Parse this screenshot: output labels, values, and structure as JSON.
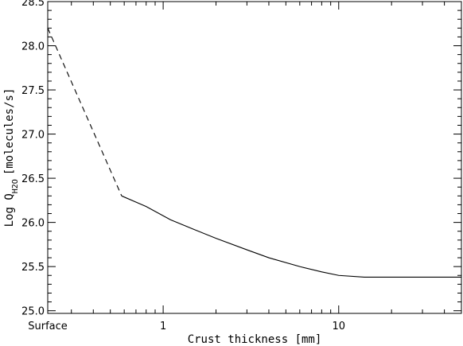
{
  "chart_data": {
    "type": "line",
    "xlabel": "Crust thickness [mm]",
    "ylabel_main": "Log Q",
    "ylabel_sub": "H2O",
    "ylabel_units": "[molecules/s]",
    "x_scale": "log",
    "xlim": [
      0.22,
      50
    ],
    "ylim": [
      24.97,
      28.5
    ],
    "x_ticks": [
      {
        "value": 1,
        "label": "1"
      },
      {
        "value": 10,
        "label": "10"
      }
    ],
    "x_surface_label": "Surface",
    "y_ticks": [
      {
        "value": 25.0,
        "label": "25.0"
      },
      {
        "value": 25.5,
        "label": "25.5"
      },
      {
        "value": 26.0,
        "label": "26.0"
      },
      {
        "value": 26.5,
        "label": "26.5"
      },
      {
        "value": 27.0,
        "label": "27.0"
      },
      {
        "value": 27.5,
        "label": "27.5"
      },
      {
        "value": 28.0,
        "label": "28.0"
      },
      {
        "value": 28.5,
        "label": "28.5"
      }
    ],
    "series": [
      {
        "style": "dashed",
        "points": [
          [
            0.22,
            28.2
          ],
          [
            0.58,
            26.3
          ]
        ]
      },
      {
        "style": "solid",
        "points": [
          [
            0.58,
            26.3
          ],
          [
            0.8,
            26.18
          ],
          [
            1.1,
            26.03
          ],
          [
            1.5,
            25.92
          ],
          [
            2.0,
            25.82
          ],
          [
            3.0,
            25.69
          ],
          [
            4.0,
            25.6
          ],
          [
            6.0,
            25.5
          ],
          [
            8.0,
            25.44
          ],
          [
            10.0,
            25.4
          ],
          [
            14.0,
            25.38
          ],
          [
            20.0,
            25.38
          ],
          [
            30.0,
            25.38
          ],
          [
            50.0,
            25.38
          ]
        ]
      },
      {
        "style": "dashed",
        "points": [
          [
            0.22,
            28.5
          ],
          [
            0.58,
            28.5
          ]
        ]
      },
      {
        "style": "dashed",
        "points": [
          [
            0.22,
            24.97
          ],
          [
            0.58,
            24.97
          ]
        ]
      }
    ]
  }
}
